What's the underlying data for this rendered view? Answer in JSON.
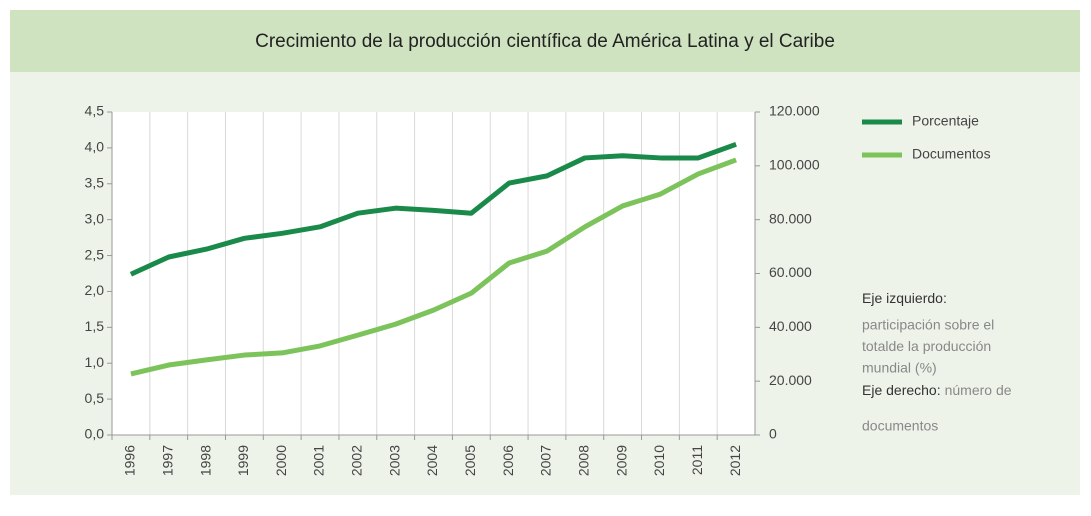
{
  "chart_data": {
    "type": "line",
    "title": "Crecimiento de la producción científica de América Latina y el Caribe",
    "categories": [
      "1996",
      "1997",
      "1998",
      "1999",
      "2000",
      "2001",
      "2002",
      "2003",
      "2004",
      "2005",
      "2006",
      "2007",
      "2008",
      "2009",
      "2010",
      "2011",
      "2012"
    ],
    "series": [
      {
        "name": "Porcentaje",
        "color": "#1a8a4a",
        "values": [
          2.24,
          2.48,
          2.59,
          2.74,
          2.81,
          2.9,
          3.09,
          3.16,
          3.13,
          3.09,
          3.51,
          3.61,
          3.86,
          3.89,
          3.86,
          3.86,
          4.05
        ]
      },
      {
        "name": "Documentos",
        "color": "#7dc35b",
        "axis": "y2",
        "values": [
          22700,
          26000,
          27900,
          29700,
          30500,
          33100,
          37100,
          41200,
          46400,
          52700,
          63900,
          68300,
          77300,
          85100,
          89500,
          97000,
          102200
        ]
      }
    ],
    "ylim": [
      0,
      4.5
    ],
    "yticks": [
      {
        "value": 0,
        "label": "0,0"
      },
      {
        "value": 0.5,
        "label": "0,5"
      },
      {
        "value": 1,
        "label": "1,0"
      },
      {
        "value": 1.5,
        "label": "1,5"
      },
      {
        "value": 2,
        "label": "2,0"
      },
      {
        "value": 2.5,
        "label": "2,5"
      },
      {
        "value": 3,
        "label": "3,0"
      },
      {
        "value": 3.5,
        "label": "3,5"
      },
      {
        "value": 4,
        "label": "4,0"
      },
      {
        "value": 4.5,
        "label": "4,5"
      }
    ],
    "y2lim": [
      0,
      120000
    ],
    "y2ticks": [
      0,
      {
        "value": 20000,
        "label": "20.000"
      },
      {
        "value": 40000,
        "label": "40.000"
      },
      {
        "value": 60000,
        "label": "60.000"
      },
      {
        "value": 80000,
        "label": "80.000"
      },
      {
        "value": 100000,
        "label": "100.000"
      },
      {
        "value": 120000,
        "label": "120.000"
      }
    ],
    "grid": "x",
    "legend": "top-right",
    "annotations": [
      {
        "label": "Eje izquierdo:",
        "text": [
          "participación sobre el",
          "totalde la producción",
          "mundial (%)"
        ]
      },
      {
        "label": "Eje derecho:",
        "text": [
          "número de",
          "documentos"
        ]
      }
    ]
  }
}
